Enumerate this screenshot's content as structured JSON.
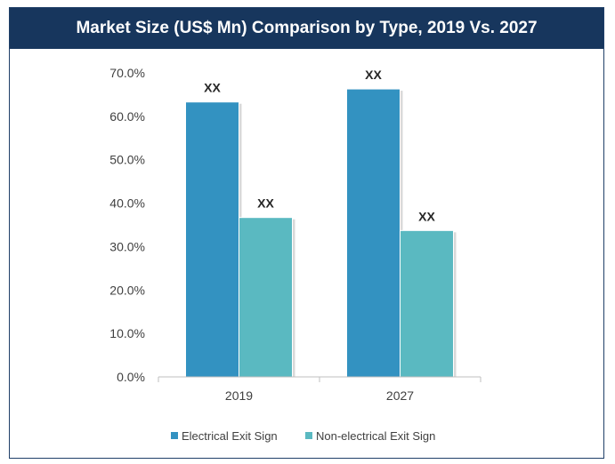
{
  "title": "Market Size (US$ Mn) Comparison by Type, 2019 Vs. 2027",
  "colors": {
    "title_bg": "#17365d",
    "electrical": "#3392c1",
    "non_electrical": "#5ab9c1"
  },
  "chart_data": {
    "type": "bar",
    "title": "Market Size (US$ Mn) Comparison by Type, 2019 Vs. 2027",
    "categories": [
      "2019",
      "2027"
    ],
    "series": [
      {
        "name": "Electrical Exit Sign",
        "values": [
          63.3,
          66.3
        ],
        "data_labels": [
          "XX",
          "XX"
        ]
      },
      {
        "name": "Non-electrical Exit Sign",
        "values": [
          36.7,
          33.7
        ],
        "data_labels": [
          "XX",
          "XX"
        ]
      }
    ],
    "ylim": [
      0,
      70
    ],
    "yticks": [
      0,
      10,
      20,
      30,
      40,
      50,
      60,
      70
    ],
    "ytick_labels": [
      "0.0%",
      "10.0%",
      "20.0%",
      "30.0%",
      "40.0%",
      "50.0%",
      "60.0%",
      "70.0%"
    ],
    "xlabel": "",
    "ylabel": "",
    "grid": false,
    "legend_position": "bottom"
  }
}
